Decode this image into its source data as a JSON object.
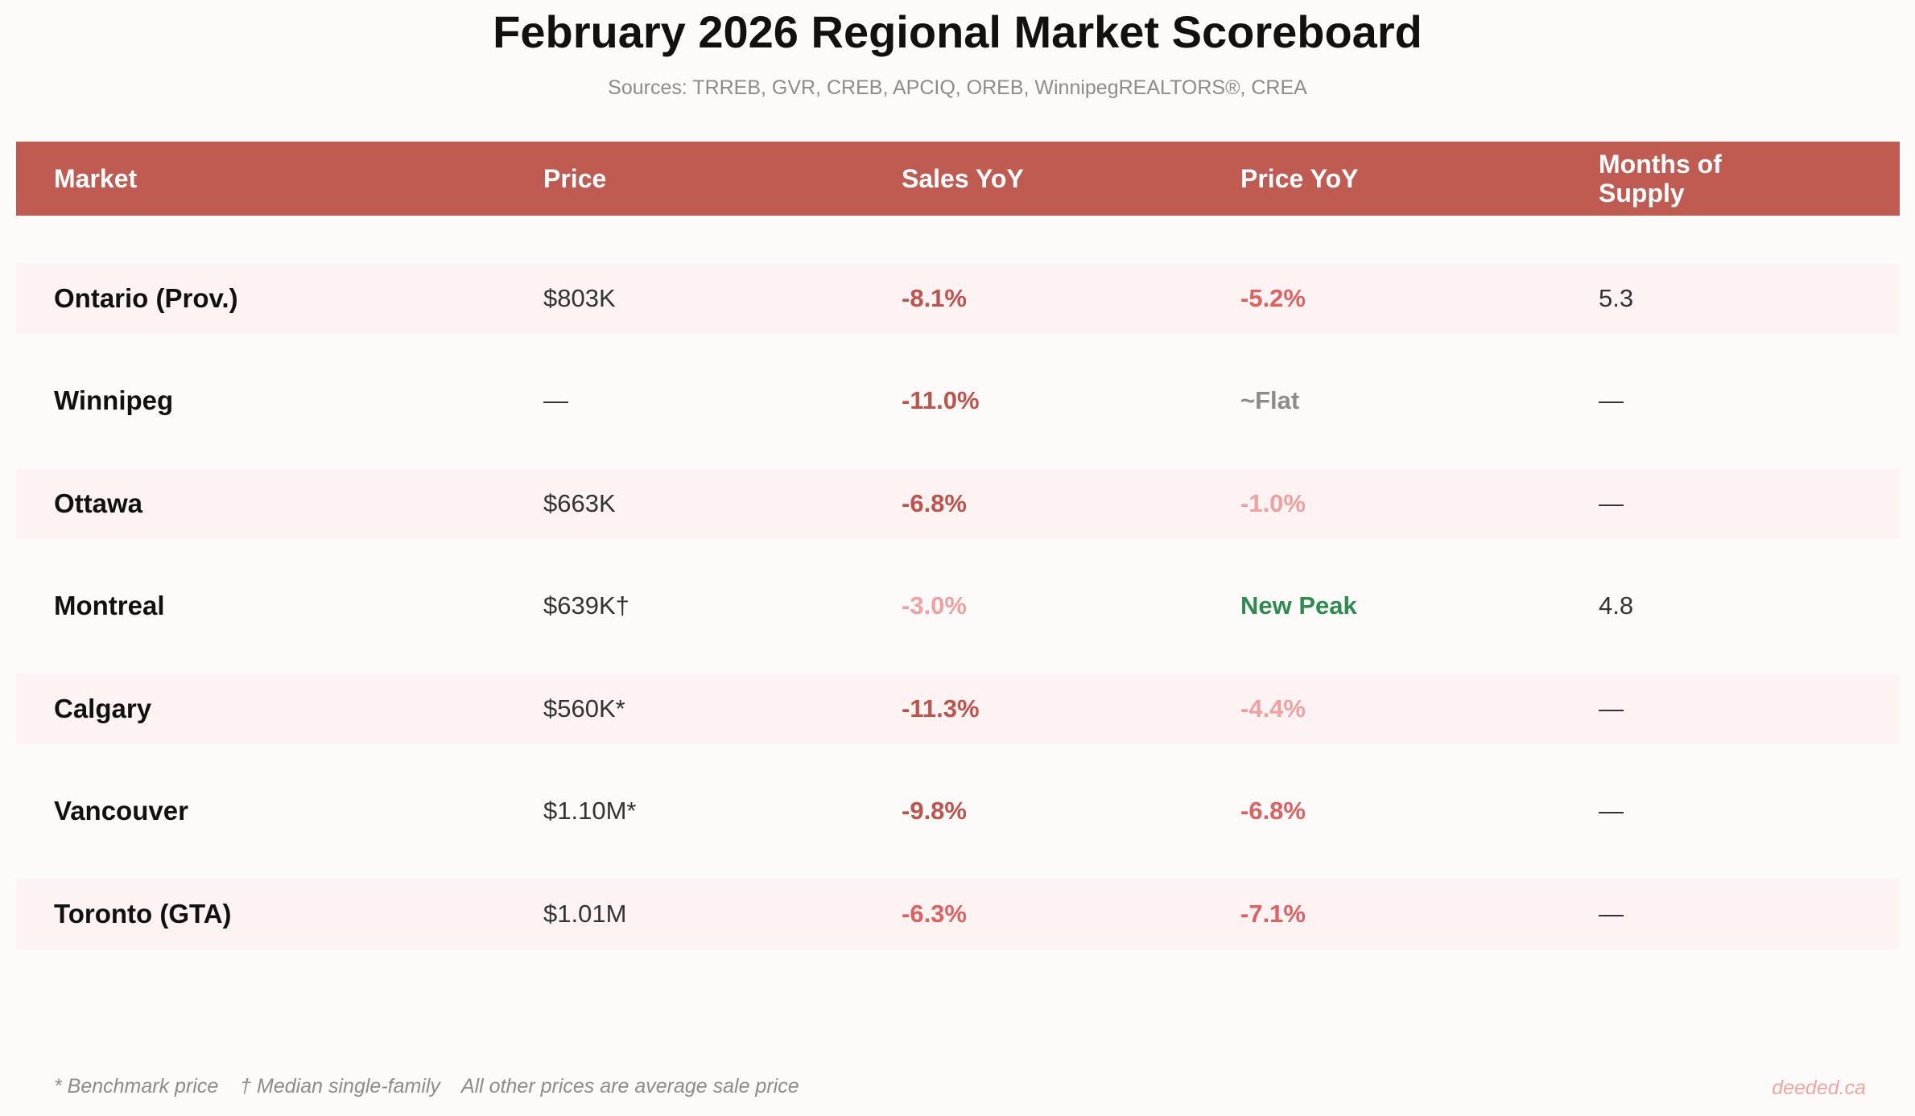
{
  "title": "February 2026 Regional Market Scoreboard",
  "subtitle": "Sources: TRREB, GVR, CREB, APCIQ, OREB, WinnipegREALTORS®, CREA",
  "colors": {
    "header_bg": "#c05b52",
    "dark_red": "#c0524c",
    "mid_red": "#e06060",
    "light_red": "#f0a0a0",
    "gray": "#8c8c8c",
    "green": "#2e8b4e",
    "shaded_row": "#fdf3f3"
  },
  "columns": {
    "market": "Market",
    "price": "Price",
    "sales_yoy": "Sales YoY",
    "price_yoy": "Price YoY",
    "months_supply": "Months of Supply"
  },
  "rows": [
    {
      "market": "Ontario (Prov.)",
      "price": "$803K",
      "sales_yoy": "-8.1%",
      "sales_color": "#c0524c",
      "price_yoy": "-5.2%",
      "price_yoy_color": "#e06060",
      "months_supply": "5.3"
    },
    {
      "market": "Winnipeg",
      "price": "—",
      "sales_yoy": "-11.0%",
      "sales_color": "#c0524c",
      "price_yoy": "~Flat",
      "price_yoy_color": "#8c8c8c",
      "months_supply": "—"
    },
    {
      "market": "Ottawa",
      "price": "$663K",
      "sales_yoy": "-6.8%",
      "sales_color": "#c0524c",
      "price_yoy": "-1.0%",
      "price_yoy_color": "#f0a0a0",
      "months_supply": "—"
    },
    {
      "market": "Montreal",
      "price": "$639K†",
      "sales_yoy": "-3.0%",
      "sales_color": "#f0a0a0",
      "price_yoy": "New Peak",
      "price_yoy_color": "#2e8b4e",
      "months_supply": "4.8"
    },
    {
      "market": "Calgary",
      "price": "$560K*",
      "sales_yoy": "-11.3%",
      "sales_color": "#c0524c",
      "price_yoy": "-4.4%",
      "price_yoy_color": "#f0a0a0",
      "months_supply": "—"
    },
    {
      "market": "Vancouver",
      "price": "$1.10M*",
      "sales_yoy": "-9.8%",
      "sales_color": "#c0524c",
      "price_yoy": "-6.8%",
      "price_yoy_color": "#e06060",
      "months_supply": "—"
    },
    {
      "market": "Toronto (GTA)",
      "price": "$1.01M",
      "sales_yoy": "-6.3%",
      "sales_color": "#e06060",
      "price_yoy": "-7.1%",
      "price_yoy_color": "#e06060",
      "months_supply": "—"
    }
  ],
  "footnotes": {
    "benchmark": "* Benchmark price",
    "median": "† Median single-family",
    "average": "All other prices are average sale price"
  },
  "brand": "deeded.ca"
}
